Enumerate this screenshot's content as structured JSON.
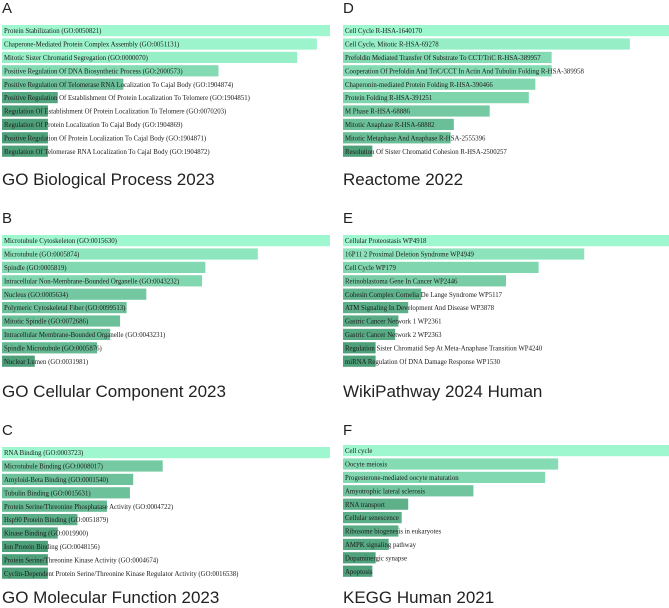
{
  "chart_data": [
    {
      "panel": "A",
      "type": "bar",
      "title": "GO Biological Process 2023",
      "orientation": "horizontal",
      "categories": [
        "Protein Stabilization (GO:0050821)",
        "Chaperone-Mediated Protein Complex Assembly (GO:0051131)",
        "Mitotic Sister Chromatid Segregation (GO:0000070)",
        "Positive Regulation Of DNA Biosynthetic Process (GO:2000573)",
        "Positive Regulation Of Telomerase RNA Localization To Cajal Body (GO:1904874)",
        "Positive Regulation Of Establishment Of Protein Localization To Telomere (GO:1904851)",
        "Regulation Of Establishment Of Protein Localization To Telomere (GO:0070203)",
        "Regulation Of Protein Localization To Cajal Body (GO:1904869)",
        "Positive Regulation Of Protein Localization To Cajal Body (GO:1904871)",
        "Regulation Of Telomerase RNA Localization To Cajal Body (GO:1904872)"
      ],
      "values": [
        1.0,
        0.96,
        0.9,
        0.66,
        0.37,
        0.17,
        0.14,
        0.14,
        0.14,
        0.14
      ]
    },
    {
      "panel": "B",
      "type": "bar",
      "title": "GO Cellular Component 2023",
      "orientation": "horizontal",
      "categories": [
        "Microtubule Cytoskeleton (GO:0015630)",
        "Microtubule (GO:0005874)",
        "Spindle (GO:0005819)",
        "Intracellular Non-Membrane-Bounded Organelle (GO:0043232)",
        "Nucleus (GO:0005634)",
        "Polymeric Cytoskeletal Fiber (GO:0099513)",
        "Mitotic Spindle (GO:0072686)",
        "Intracellular Membrane-Bounded Organelle (GO:0043231)",
        "Spindle Microtubule (GO:0005876)",
        "Nuclear Lumen (GO:0031981)"
      ],
      "values": [
        1.0,
        0.78,
        0.62,
        0.61,
        0.44,
        0.38,
        0.36,
        0.33,
        0.29,
        0.1
      ]
    },
    {
      "panel": "C",
      "type": "bar",
      "title": "GO Molecular Function 2023",
      "orientation": "horizontal",
      "categories": [
        "RNA Binding (GO:0003723)",
        "Microtubule Binding (GO:0008017)",
        "Amyloid-Beta Binding (GO:0001540)",
        "Tubulin Binding (GO:0015631)",
        "Protein Serine/Threonine Phosphatase Activity (GO:0004722)",
        "Hsp90 Protein Binding (GO:0051879)",
        "Kinase Binding (GO:0019900)",
        "Ion Protein Binding (GO:0048156)",
        "Protein Serine/Threonine Kinase Activity (GO:0004674)",
        "Cyclin-Dependent Protein Serine/Threonine Kinase Regulator Activity (GO:0016538)"
      ],
      "values": [
        1.0,
        0.49,
        0.4,
        0.39,
        0.32,
        0.23,
        0.17,
        0.14,
        0.14,
        0.14
      ]
    },
    {
      "panel": "D",
      "type": "bar",
      "title": "Reactome 2022",
      "orientation": "horizontal",
      "categories": [
        "Cell Cycle R-HSA-1640170",
        "Cell Cycle, Mitotic R-HSA-69278",
        "Prefoldin Mediated Transfer Of Substrate To CCT/TriC R-HSA-389957",
        "Cooperation Of Prefoldin And TriC/CCT In Actin And Tubulin Folding R-HSA-389958",
        "Chaperonin-mediated Protein Folding R-HSA-390466",
        "Protein Folding R-HSA-391251",
        "M Phase R-HSA-68886",
        "Mitotic Anaphase R-HSA-68882",
        "Mitotic Metaphase And Anaphase R-HSA-2555396",
        "Resolution Of Sister Chromatid Cohesion R-HSA-2500257"
      ],
      "values": [
        1.0,
        0.88,
        0.64,
        0.64,
        0.59,
        0.57,
        0.45,
        0.34,
        0.33,
        0.09
      ]
    },
    {
      "panel": "E",
      "type": "bar",
      "title": "WikiPathway 2024 Human",
      "orientation": "horizontal",
      "categories": [
        "Cellular Proteostasis WP4918",
        "16P11 2 Proximal Deletion Syndrome WP4949",
        "Cell Cycle WP179",
        "Retinoblastoma Gene In Cancer WP2446",
        "Cohesin Complex Cornelia De Lange Syndrome WP5117",
        "ATM Signaling In Development And Disease WP3878",
        "Gastric Cancer Network 1 WP2361",
        "Gastric Cancer Network 2 WP2363",
        "Regulation Sister Chromatid Sep At Meta-Anaphase Transition WP4240",
        "miRNA Regulation Of DNA Damage Response WP1530"
      ],
      "values": [
        1.0,
        0.74,
        0.6,
        0.5,
        0.24,
        0.2,
        0.17,
        0.16,
        0.1,
        0.1
      ]
    },
    {
      "panel": "F",
      "type": "bar",
      "title": "KEGG Human 2021",
      "orientation": "horizontal",
      "categories": [
        "Cell cycle",
        "Oocyte meiosis",
        "Progesterone-mediated oocyte maturation",
        "Amyotrophic lateral sclerosis",
        "RNA transport",
        "Cellular senescence",
        "Ribosome biogenesis in eukaryotes",
        "AMPK signaling pathway",
        "Dopaminergic synapse",
        "Apoptosis"
      ],
      "values": [
        1.0,
        0.66,
        0.62,
        0.4,
        0.2,
        0.18,
        0.17,
        0.14,
        0.1,
        0.09
      ]
    }
  ],
  "colors": {
    "bar_max": "#9ef7cf",
    "bar_min": "#4ea07a",
    "label_text": "#1a1a1a",
    "title_text": "#222222"
  }
}
